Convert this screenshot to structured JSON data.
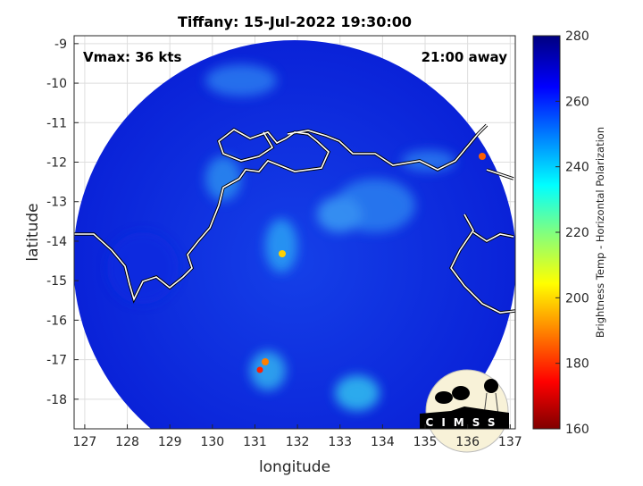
{
  "title": "Tiffany: 15-Jul-2022 19:30:00",
  "annotations": {
    "vmax": "Vmax: 36 kts",
    "away": "21:00 away"
  },
  "logo_text": "CIMSS",
  "map": {
    "xlabel": "longitude",
    "ylabel": "latitude",
    "xlim": [
      126.75,
      137.12
    ],
    "ylim": [
      -18.75,
      -8.8
    ],
    "xticks": [
      "127",
      "128",
      "129",
      "130",
      "131",
      "132",
      "133",
      "134",
      "135",
      "136",
      "137"
    ],
    "yticks": [
      "-9",
      "-10",
      "-11",
      "-12",
      "-13",
      "-14",
      "-15",
      "-16",
      "-17",
      "-18"
    ],
    "grid": true,
    "coastline_color": "#ffffff",
    "swath_shape": "circle"
  },
  "colorbar": {
    "label": "Brightness Temp - Horizontal Polarization",
    "range": [
      160,
      280
    ],
    "ticks": [
      "280",
      "260",
      "240",
      "220",
      "200",
      "180",
      "160"
    ],
    "colormap": "jet"
  }
}
